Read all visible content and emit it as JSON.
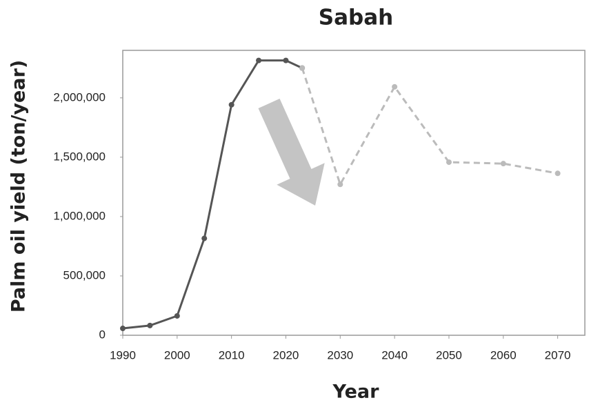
{
  "chart_data": {
    "type": "line",
    "title": "Sabah",
    "x_label": "Year",
    "y_label": "Palm oil yield (ton/year)",
    "x": [
      1990,
      1995,
      2000,
      2005,
      2010,
      2015,
      2020,
      2023,
      2030,
      2040,
      2050,
      2060,
      2070
    ],
    "series": [
      {
        "color": "#555555",
        "style": "solid",
        "values": [
          58000,
          82000,
          163000,
          816000,
          1942000,
          2315000,
          2315000,
          2251000,
          null,
          null,
          null,
          null,
          null
        ]
      },
      {
        "color": "#bbbbbb",
        "style": "dashed",
        "values": [
          null,
          null,
          null,
          null,
          null,
          null,
          null,
          2251000,
          1271000,
          2093000,
          1458000,
          1446000,
          1364000
        ]
      }
    ],
    "xlim": [
      1990,
      2075
    ],
    "xticks": [
      1990,
      2000,
      2010,
      2020,
      2030,
      2040,
      2050,
      2060,
      2070
    ],
    "ylim": [
      0,
      2400000
    ],
    "yticks": [
      0,
      {
        "value": 500000,
        "label": "500,000"
      },
      {
        "value": 1000000,
        "label": "1,000,000"
      },
      {
        "value": 1500000,
        "label": "1,500,000"
      },
      {
        "value": 2000000,
        "label": "2,000,000"
      }
    ],
    "grid": false
  }
}
